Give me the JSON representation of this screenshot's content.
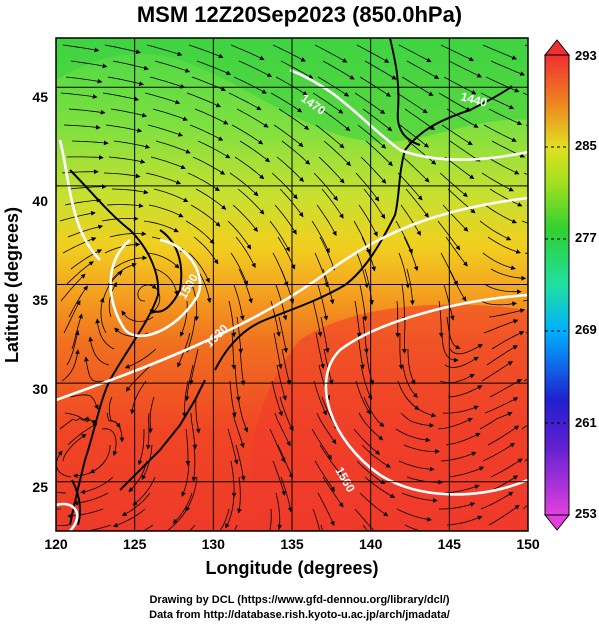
{
  "title": "MSM 12Z20Sep2023 (850.0hPa)",
  "x_axis": {
    "label": "Longitude (degrees)",
    "ticks": [
      "120",
      "125",
      "130",
      "135",
      "140",
      "145",
      "150"
    ],
    "range": [
      120,
      150
    ]
  },
  "y_axis": {
    "label": "Latitude  (degrees)",
    "ticks": [
      "25",
      "30",
      "35",
      "40",
      "45"
    ],
    "range": [
      22.5,
      47.5
    ]
  },
  "colorbar": {
    "ticks": [
      "253",
      "261",
      "269",
      "277",
      "285",
      "293"
    ],
    "range": [
      253,
      293
    ],
    "colors": [
      "#e040e0",
      "#2020d0",
      "#00b0ff",
      "#20e0a0",
      "#30d030",
      "#e0e020",
      "#f08020",
      "#f03030"
    ]
  },
  "contours": {
    "labels": [
      "1440",
      "1470",
      "1500",
      "1530",
      "1560"
    ]
  },
  "credits": {
    "line1": "Drawing by DCL (https://www.gfd-dennou.org/library/dcl/)",
    "line2": "Data from http://database.rish.kyoto-u.ac.jp/arch/jmadata/"
  }
}
